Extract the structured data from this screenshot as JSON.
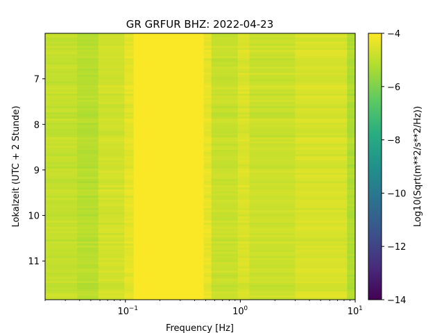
{
  "chart_data": {
    "type": "heatmap",
    "title": "GR GRFUR  BHZ: 2022-04-23",
    "xlabel": "Frequency [Hz]",
    "ylabel": "Lokalzeit (UTC + 2 Stunde)",
    "colorbar_label": "Log10(Sqrt(m**2/s**2/Hz))",
    "x_scale": "log",
    "xlim": [
      0.02,
      10
    ],
    "ylim": [
      11.85,
      6.0
    ],
    "y_inverted": true,
    "x_ticks": [
      {
        "value": 0.1,
        "base": "10",
        "exp": "−1"
      },
      {
        "value": 1,
        "base": "10",
        "exp": "0"
      },
      {
        "value": 10,
        "base": "10",
        "exp": "1"
      }
    ],
    "y_ticks": [
      {
        "value": 7,
        "label": "7"
      },
      {
        "value": 8,
        "label": "8"
      },
      {
        "value": 9,
        "label": "9"
      },
      {
        "value": 10,
        "label": "10"
      },
      {
        "value": 11,
        "label": "11"
      }
    ],
    "colorbar": {
      "range": [
        -14,
        -4
      ],
      "colormap": "viridis",
      "ticks": [
        {
          "value": -4,
          "label": "−4"
        },
        {
          "value": -6,
          "label": "−6"
        },
        {
          "value": -8,
          "label": "−8"
        },
        {
          "value": -10,
          "label": "−10"
        },
        {
          "value": -12,
          "label": "−12"
        },
        {
          "value": -14,
          "label": "−14"
        }
      ]
    },
    "frequency_bands": [
      {
        "f_min": 0.02,
        "f_max": 0.038,
        "log10_amplitude": -4.9
      },
      {
        "f_min": 0.038,
        "f_max": 0.058,
        "log10_amplitude": -5.1
      },
      {
        "f_min": 0.058,
        "f_max": 0.098,
        "log10_amplitude": -4.7
      },
      {
        "f_min": 0.098,
        "f_max": 0.118,
        "log10_amplitude": -4.4
      },
      {
        "f_min": 0.118,
        "f_max": 0.48,
        "log10_amplitude": -4.05
      },
      {
        "f_min": 0.48,
        "f_max": 0.56,
        "log10_amplitude": -4.35
      },
      {
        "f_min": 0.56,
        "f_max": 0.95,
        "log10_amplitude": -4.85
      },
      {
        "f_min": 0.95,
        "f_max": 1.2,
        "log10_amplitude": -4.55
      },
      {
        "f_min": 1.2,
        "f_max": 3.0,
        "log10_amplitude": -4.8
      },
      {
        "f_min": 3.0,
        "f_max": 8.5,
        "log10_amplitude": -4.6
      },
      {
        "f_min": 8.5,
        "f_max": 10,
        "log10_amplitude": -5.2
      }
    ]
  }
}
